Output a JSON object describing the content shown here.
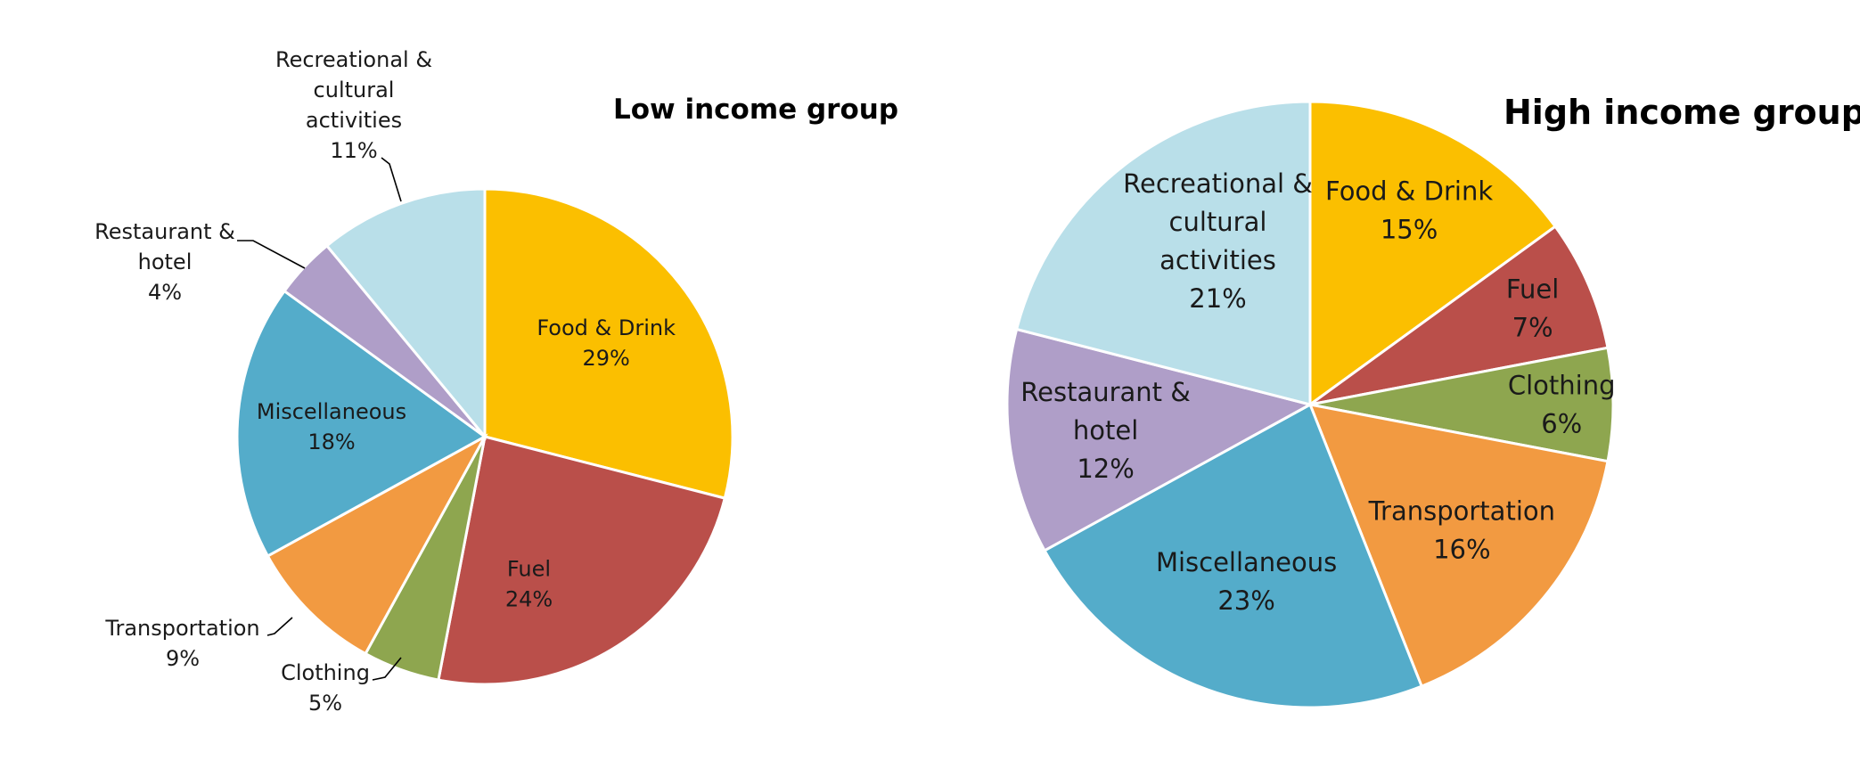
{
  "chart_data": [
    {
      "type": "pie",
      "title": "Low income group",
      "categories": [
        "Food & Drink",
        "Fuel",
        "Clothing",
        "Transportation",
        "Miscellaneous",
        "Restaurant & hotel",
        "Recreational & cultural activities"
      ],
      "values": [
        29,
        24,
        5,
        9,
        18,
        4,
        11
      ],
      "labels": [
        {
          "lines": [
            "Food & Drink"
          ],
          "pct": "29%"
        },
        {
          "lines": [
            "Fuel"
          ],
          "pct": "24%"
        },
        {
          "lines": [
            "Clothing"
          ],
          "pct": "5%"
        },
        {
          "lines": [
            "Transportation"
          ],
          "pct": "9%"
        },
        {
          "lines": [
            "Miscellaneous"
          ],
          "pct": "18%"
        },
        {
          "lines": [
            "Restaurant &",
            "hotel"
          ],
          "pct": "4%"
        },
        {
          "lines": [
            "Recreational &",
            "cultural",
            "activities"
          ],
          "pct": "11%"
        }
      ],
      "colors": [
        "#FBBF00",
        "#BA4F4A",
        "#8EA64F",
        "#F29A41",
        "#54ACCA",
        "#AF9EC8",
        "#B9DFE9"
      ],
      "legend": "none"
    },
    {
      "type": "pie",
      "title": "High income group",
      "categories": [
        "Food & Drink",
        "Fuel",
        "Clothing",
        "Transportation",
        "Miscellaneous",
        "Restaurant & hotel",
        "Recreational & cultural activities"
      ],
      "values": [
        15,
        7,
        6,
        16,
        23,
        12,
        21
      ],
      "labels": [
        {
          "lines": [
            "Food & Drink"
          ],
          "pct": "15%"
        },
        {
          "lines": [
            "Fuel"
          ],
          "pct": "7%"
        },
        {
          "lines": [
            "Clothing"
          ],
          "pct": "6%"
        },
        {
          "lines": [
            "Transportation"
          ],
          "pct": "16%"
        },
        {
          "lines": [
            "Miscellaneous"
          ],
          "pct": "23%"
        },
        {
          "lines": [
            "Restaurant &",
            "hotel"
          ],
          "pct": "12%"
        },
        {
          "lines": [
            "Recreational &",
            "cultural",
            "activities"
          ],
          "pct": "21%"
        }
      ],
      "colors": [
        "#FBBF00",
        "#BA4F4A",
        "#8EA64F",
        "#F29A41",
        "#54ACCA",
        "#AF9EC8",
        "#B9DFE9"
      ],
      "legend": "none"
    }
  ]
}
